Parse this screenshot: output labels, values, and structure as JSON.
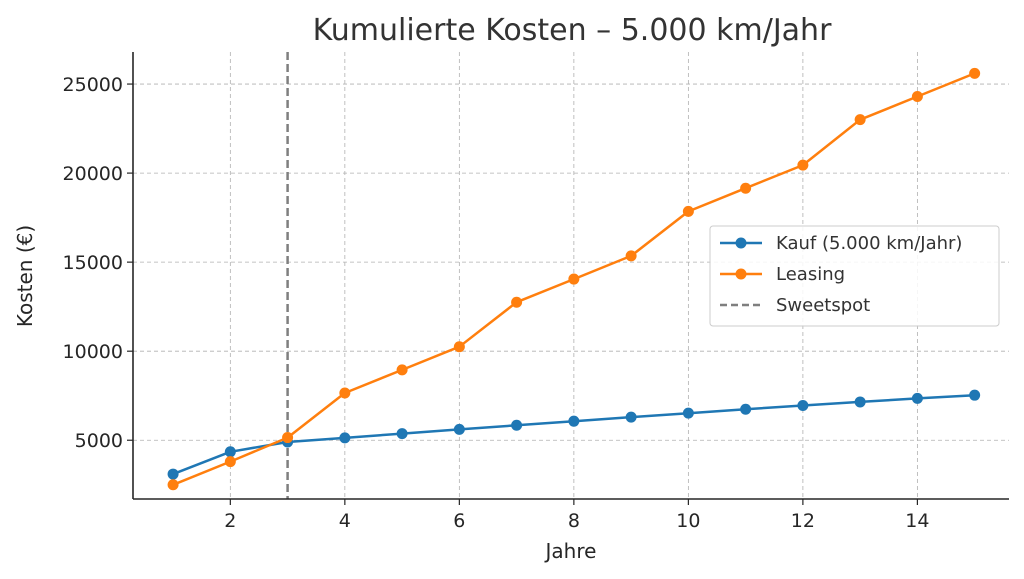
{
  "chart_data": {
    "type": "line",
    "title": "Kumulierte Kosten – 5.000 km/Jahr",
    "xlabel": "Jahre",
    "ylabel": "Kosten (€)",
    "x": [
      1,
      2,
      3,
      4,
      5,
      6,
      7,
      8,
      9,
      10,
      11,
      12,
      13,
      14,
      15
    ],
    "xticks": [
      2,
      4,
      6,
      8,
      10,
      12,
      14
    ],
    "yticks": [
      5000,
      10000,
      15000,
      20000,
      25000
    ],
    "xlim": [
      0.3,
      15.6
    ],
    "ylim": [
      1700,
      26800
    ],
    "grid": true,
    "legend_position": "center-right",
    "series": [
      {
        "name": "Kauf (5.000 km/Jahr)",
        "color": "#1f77b4",
        "marker": "circle",
        "values": [
          3100,
          4350,
          4900,
          5130,
          5370,
          5610,
          5840,
          6070,
          6300,
          6520,
          6740,
          6950,
          7150,
          7350,
          7530
        ]
      },
      {
        "name": "Leasing",
        "color": "#ff7f0e",
        "marker": "circle",
        "values": [
          2500,
          3800,
          5150,
          7650,
          8950,
          10250,
          12750,
          14050,
          15350,
          17850,
          19150,
          20450,
          23000,
          24300,
          25600
        ]
      }
    ],
    "vline": {
      "name": "Sweetspot",
      "x": 3,
      "color": "#7f7f7f",
      "style": "dashed"
    }
  }
}
